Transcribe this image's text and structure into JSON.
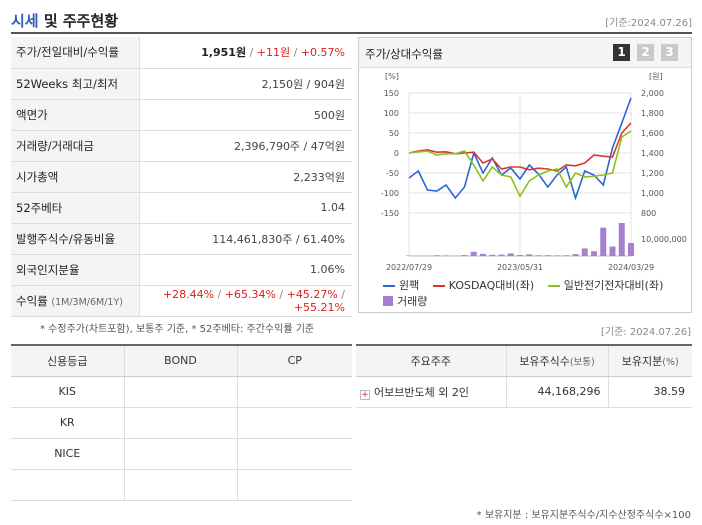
{
  "header": {
    "title_hl": "시세",
    "title_rest": " 및 주주현황",
    "date": "[기준:2024.07.26]"
  },
  "quote": {
    "price_label": "주가/전일대비/수익률",
    "price": "1,951원",
    "change": "+11원",
    "change_pct": "+0.57%",
    "w52_label": "52Weeks 최고/최저",
    "w52": "2,150원 / 904원",
    "face_label": "액면가",
    "face": "500원",
    "volume_label": "거래량/거래대금",
    "volume": "2,396,790주 / 47억원",
    "mcap_label": "시가총액",
    "mcap": "2,233억원",
    "beta_label": "52주베타",
    "beta": "1.04",
    "shares_label": "발행주식수/유동비율",
    "shares": "114,461,830주 / 61.40%",
    "foreign_label": "외국인지분율",
    "foreign": "1.06%",
    "ret_label": "수익률",
    "ret_sub": "(1M/3M/6M/1Y)",
    "ret_1m": "+28.44%",
    "ret_3m": "+65.34%",
    "ret_6m": "+45.27%",
    "ret_1y": "+55.21%"
  },
  "note1": "* 수정주가(차트포함), 보통주 기준, * 52주베타: 주간수익률 기준",
  "chart": {
    "title": "주가/상대수익률",
    "pages": [
      "1",
      "2",
      "3"
    ],
    "left_unit": "[%]",
    "right_unit": "[원]",
    "vol_tick": "10,000,000",
    "legend": {
      "s1": "윈팩",
      "s2": "KOSDAQ대비(좌)",
      "s3": "일반전기전자대비(좌)",
      "s4": "거래량"
    }
  },
  "chart_data": {
    "type": "line",
    "x": [
      "2022/07",
      "2022/08",
      "2022/09",
      "2022/10",
      "2022/11",
      "2022/12",
      "2023/01",
      "2023/02",
      "2023/03",
      "2023/04",
      "2023/05",
      "2023/06",
      "2023/07",
      "2023/08",
      "2023/09",
      "2023/10",
      "2023/11",
      "2023/12",
      "2024/01",
      "2024/02",
      "2024/03",
      "2024/04",
      "2024/05",
      "2024/06",
      "2024/07"
    ],
    "x_tick_labels": [
      "2022/07/29",
      "2023/05/31",
      "2024/03/29"
    ],
    "y_left": {
      "label": "[%]",
      "ticks": [
        150,
        100,
        50,
        0,
        -50,
        -100,
        -150
      ],
      "ylim": [
        -150,
        150
      ]
    },
    "y_right": {
      "label": "[원]",
      "ticks": [
        2000,
        1800,
        1600,
        1400,
        1200,
        1000,
        800
      ],
      "ylim": [
        800,
        2000
      ]
    },
    "series": [
      {
        "name": "윈팩",
        "color": "#2e64d6",
        "axis": "right",
        "values": [
          1150,
          1220,
          1030,
          1020,
          1080,
          950,
          1060,
          1400,
          1200,
          1350,
          1180,
          1250,
          1140,
          1280,
          1190,
          1060,
          1180,
          1260,
          950,
          1220,
          1180,
          1080,
          1450,
          1700,
          1951
        ]
      },
      {
        "name": "KOSDAQ대비(좌)",
        "color": "#d8382b",
        "axis": "left",
        "values": [
          0,
          5,
          8,
          2,
          3,
          -2,
          0,
          2,
          -25,
          -15,
          -40,
          -35,
          -35,
          -42,
          -38,
          -40,
          -45,
          -30,
          -32,
          -25,
          -5,
          -8,
          -10,
          50,
          75
        ]
      },
      {
        "name": "일반전기전자대비(좌)",
        "color": "#8cc21e",
        "axis": "left",
        "values": [
          0,
          3,
          5,
          -5,
          -2,
          -2,
          5,
          -30,
          -70,
          -35,
          -55,
          -60,
          -108,
          -70,
          -55,
          -45,
          -40,
          -85,
          -50,
          -60,
          -58,
          -55,
          -50,
          40,
          55
        ]
      },
      {
        "name": "거래량",
        "color": "#a77fd0",
        "axis": "volume",
        "values": [
          200000,
          100000,
          150000,
          300000,
          250000,
          180000,
          400000,
          1800000,
          900000,
          500000,
          600000,
          1100000,
          400000,
          700000,
          300000,
          350000,
          250000,
          300000,
          800000,
          3200000,
          2000000,
          12000000,
          4000000,
          14000000,
          5500000
        ]
      }
    ],
    "grid": true,
    "legend_position": "bottom"
  },
  "date2": "[기준: 2024.07.26]",
  "credit": {
    "headers": [
      "신용등급",
      "BOND",
      "CP"
    ],
    "rows": [
      [
        "KIS",
        "",
        ""
      ],
      [
        "KR",
        "",
        ""
      ],
      [
        "NICE",
        "",
        ""
      ],
      [
        "",
        "",
        ""
      ]
    ]
  },
  "holders": {
    "headers": [
      "주요주주",
      "보유주식수",
      "(보통)",
      "보유지분",
      "(%)"
    ],
    "rows": [
      {
        "name": "어보브반도체 외 2인",
        "shares": "44,168,296",
        "pct": "38.59"
      }
    ]
  },
  "note2": "* 보유지분 : 보유지분주식수/지수산정주식수×100"
}
